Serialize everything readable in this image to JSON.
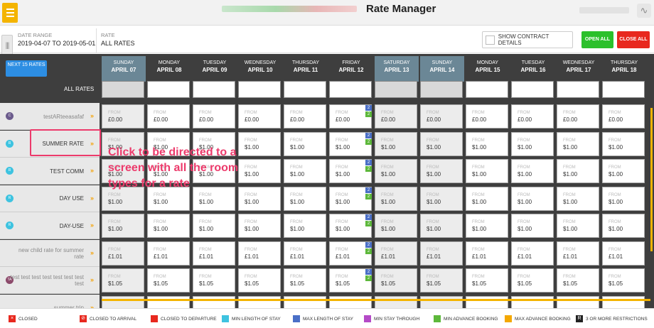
{
  "header": {
    "title": "Rate Manager"
  },
  "filters": {
    "date_range_label": "DATE RANGE",
    "date_range_value": "2019-04-07 TO 2019-05-01",
    "rate_label": "RATE",
    "rate_value": "ALL RATES"
  },
  "actions": {
    "show_contract": "SHOW CONTRACT DETAILS",
    "open_all": "OPEN ALL",
    "close_all": "CLOSE ALL"
  },
  "grid": {
    "next_button": "NEXT 15 RATES",
    "all_rates": "ALL RATES",
    "days": [
      {
        "dow": "SUNDAY",
        "date": "APRIL 07",
        "weekend": true
      },
      {
        "dow": "MONDAY",
        "date": "APRIL 08",
        "weekend": false
      },
      {
        "dow": "TUESDAY",
        "date": "APRIL 09",
        "weekend": false
      },
      {
        "dow": "WEDNESDAY",
        "date": "APRIL 10",
        "weekend": false
      },
      {
        "dow": "THURSDAY",
        "date": "APRIL 11",
        "weekend": false
      },
      {
        "dow": "FRIDAY",
        "date": "APRIL 12",
        "weekend": false
      },
      {
        "dow": "SATURDAY",
        "date": "APRIL 13",
        "weekend": true
      },
      {
        "dow": "SUNDAY",
        "date": "APRIL 14",
        "weekend": true
      },
      {
        "dow": "MONDAY",
        "date": "APRIL 15",
        "weekend": false
      },
      {
        "dow": "TUESDAY",
        "date": "APRIL 16",
        "weekend": false
      },
      {
        "dow": "WEDNESDAY",
        "date": "APRIL 17",
        "weekend": false
      },
      {
        "dow": "THURSDAY",
        "date": "APRIL 18",
        "weekend": false
      }
    ],
    "cell_prefix": "FROM",
    "rows": [
      {
        "name": "testARteeasafaf",
        "avatar": "C",
        "avatar_color": "#6b5b8c",
        "grey": true,
        "price": "£0.00"
      },
      {
        "name": "SUMMER RATE",
        "avatar": "R",
        "avatar_color": "#3ec3e0",
        "grey": false,
        "price": "$1.00"
      },
      {
        "name": "TEST COMM",
        "avatar": "R",
        "avatar_color": "#3ec3e0",
        "grey": false,
        "price": "$1.00"
      },
      {
        "name": "DAY USE",
        "avatar": "R",
        "avatar_color": "#3ec3e0",
        "grey": false,
        "price": "$1.00"
      },
      {
        "name": "DAY-USE",
        "avatar": "R",
        "avatar_color": "#3ec3e0",
        "grey": false,
        "price": "$1.00"
      },
      {
        "name": "new child rate for summer rate",
        "avatar": "",
        "avatar_color": "",
        "grey": true,
        "price": "£1.01"
      },
      {
        "name": "test test test test test test test test",
        "avatar": "TA",
        "avatar_color": "#8c4a6b",
        "grey": true,
        "price": "$1.05"
      },
      {
        "name": "summer trip",
        "avatar": "",
        "avatar_color": "",
        "grey": true,
        "price": ""
      }
    ],
    "badge_top": "2",
    "badge_bottom": "2"
  },
  "callout": {
    "text": "Click to be directed to a screen with all the room types for a rate"
  },
  "legend": [
    {
      "label": "CLOSED",
      "color": "#e8281e",
      "icon": "x"
    },
    {
      "label": "CLOSED TO ARRIVAL",
      "color": "#e8281e",
      "icon": "no"
    },
    {
      "label": "CLOSED TO DEPARTURE",
      "color": "#e8281e",
      "icon": ""
    },
    {
      "label": "MIN LENGTH OF STAY",
      "color": "#3ec3e0",
      "icon": ""
    },
    {
      "label": "MAX LENGTH OF STAY",
      "color": "#4a6fc7",
      "icon": ""
    },
    {
      "label": "MIN STAY THROUGH",
      "color": "#b44ac7",
      "icon": ""
    },
    {
      "label": "MIN ADVANCE BOOKING",
      "color": "#5db83b",
      "icon": ""
    },
    {
      "label": "MAX ADVANCE BOOKING",
      "color": "#f4a800",
      "icon": ""
    },
    {
      "label": "3 OR MORE RESTRICTIONS",
      "color": "#222222",
      "icon": "R"
    }
  ],
  "colors": {
    "badge_blue": "#4a6fc7",
    "badge_green": "#5db83b",
    "chevron": "#f4a000",
    "highlight": "#ec3a6b"
  }
}
